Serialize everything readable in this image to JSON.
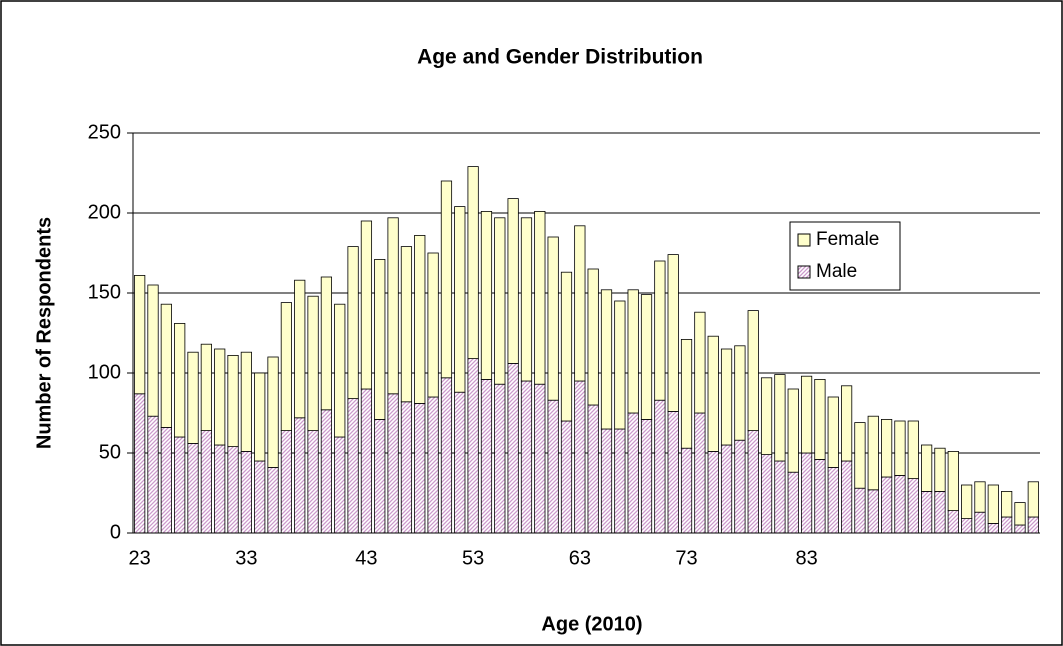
{
  "chart_data": {
    "type": "stacked-bar",
    "title": "Age and Gender Distribution",
    "x_label": "Age (2010)",
    "y_label": "Number of Respondents",
    "categories": [
      "23",
      null,
      null,
      null,
      null,
      null,
      null,
      null,
      "33",
      null,
      null,
      null,
      null,
      null,
      null,
      null,
      null,
      "43",
      null,
      null,
      null,
      null,
      null,
      null,
      null,
      "53",
      null,
      null,
      null,
      null,
      null,
      null,
      null,
      "63",
      null,
      null,
      null,
      null,
      null,
      null,
      null,
      "73",
      null,
      null,
      null,
      null,
      null,
      null,
      null,
      null,
      "83",
      null,
      null,
      null,
      null,
      null,
      null,
      null,
      null,
      null,
      null,
      null,
      null,
      null,
      null,
      null,
      null,
      null
    ],
    "series": [
      {
        "name": "Male",
        "color": "#cc99cc",
        "values": [
          87,
          73,
          66,
          60,
          56,
          64,
          55,
          54,
          51,
          45,
          41,
          64,
          72,
          64,
          77,
          60,
          84,
          90,
          71,
          87,
          82,
          81,
          85,
          97,
          88,
          109,
          96,
          93,
          106,
          95,
          93,
          83,
          70,
          95,
          80,
          65,
          65,
          75,
          71,
          83,
          76,
          53,
          75,
          51,
          55,
          58,
          64,
          49,
          45,
          38,
          50,
          46,
          41,
          45,
          28,
          27,
          35,
          36,
          34,
          26,
          26,
          14,
          9,
          13,
          6,
          10,
          5,
          10
        ]
      },
      {
        "name": "Female",
        "color": "#ffffcc",
        "values": [
          74,
          82,
          77,
          71,
          57,
          54,
          60,
          57,
          62,
          55,
          69,
          80,
          86,
          84,
          83,
          83,
          95,
          105,
          100,
          110,
          97,
          105,
          90,
          123,
          116,
          120,
          105,
          104,
          103,
          102,
          108,
          102,
          93,
          97,
          85,
          87,
          80,
          77,
          78,
          87,
          98,
          68,
          63,
          72,
          60,
          59,
          75,
          48,
          54,
          52,
          48,
          50,
          44,
          47,
          41,
          46,
          36,
          34,
          36,
          29,
          27,
          37,
          21,
          19,
          24,
          16,
          14,
          22
        ]
      }
    ],
    "ylim": [
      0,
      250
    ],
    "yticks": [
      0,
      50,
      100,
      150,
      200,
      250
    ],
    "grid": true,
    "legend": "right"
  }
}
